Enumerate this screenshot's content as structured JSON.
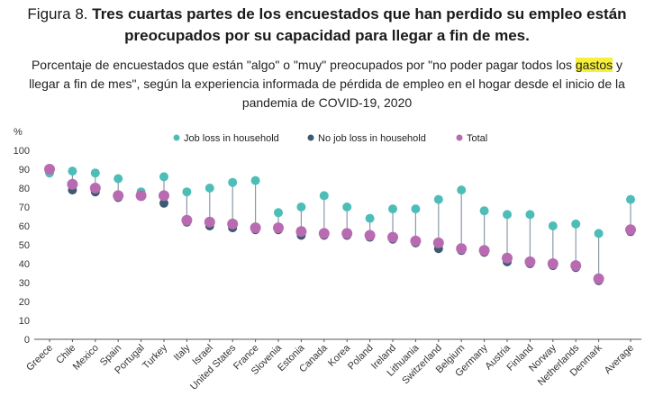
{
  "header": {
    "figure_label": "Figura 8.",
    "title": "Tres cuartas partes de los encuestados que han perdido su empleo están preocupados por su capacidad para llegar a fin de mes.",
    "subtitle_pre": "Porcentaje de encuestados que están \"algo\" o \"muy\" preocupados por \"no poder pagar todos los ",
    "subtitle_highlight": "gastos",
    "subtitle_post": " y llegar a fin de mes\", según la experiencia informada de pérdida de empleo en el hogar desde el inicio de la pandemia de COVID-19, 2020"
  },
  "chart_data": {
    "type": "scatter",
    "ylabel": "%",
    "ylim": [
      0,
      100
    ],
    "yticks": [
      0,
      10,
      20,
      30,
      40,
      50,
      60,
      70,
      80,
      90,
      100
    ],
    "grid": false,
    "legend_position": "top",
    "categories": [
      "Greece",
      "Chile",
      "Mexico",
      "Spain",
      "Portugal",
      "Turkey",
      "Italy",
      "Israel",
      "United States",
      "France",
      "Slovenia",
      "Estonia",
      "Canada",
      "Korea",
      "Poland",
      "Ireland",
      "Lithuania",
      "Switzerland",
      "Belgium",
      "Germany",
      "Austria",
      "Finland",
      "Norway",
      "Netherlands",
      "Denmark",
      "Average"
    ],
    "series": [
      {
        "name": "Job loss in household",
        "color": "#4dbdb8",
        "values": [
          88,
          89,
          88,
          85,
          78,
          86,
          78,
          80,
          83,
          84,
          67,
          70,
          76,
          70,
          64,
          69,
          69,
          74,
          79,
          68,
          66,
          66,
          60,
          61,
          56,
          74
        ]
      },
      {
        "name": "No job loss in household",
        "color": "#3b5a73",
        "values": [
          89,
          79,
          78,
          75,
          76,
          72,
          62,
          60,
          59,
          58,
          58,
          55,
          55,
          55,
          54,
          53,
          51,
          48,
          47,
          46,
          41,
          40,
          39,
          38,
          31,
          57
        ]
      },
      {
        "name": "Total",
        "color": "#b86bb0",
        "values": [
          90,
          82,
          80,
          76,
          76,
          76,
          63,
          62,
          61,
          59,
          59,
          57,
          56,
          56,
          55,
          54,
          52,
          51,
          48,
          47,
          43,
          41,
          40,
          39,
          32,
          58
        ]
      }
    ]
  }
}
